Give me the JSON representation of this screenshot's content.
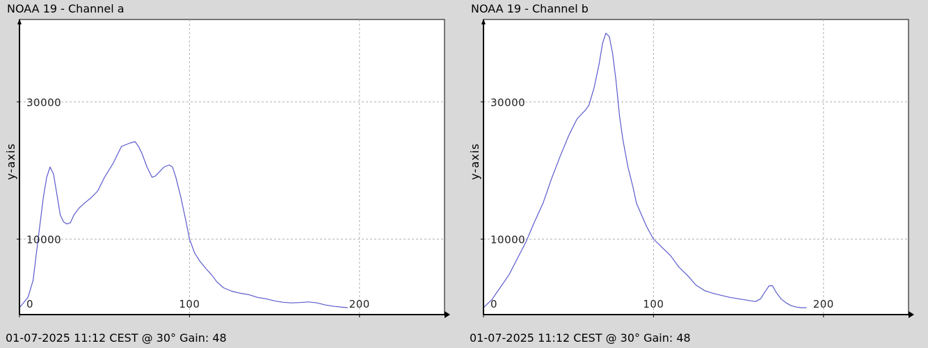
{
  "colors": {
    "background": "#d9d9d9",
    "plot_bg": "#ffffff",
    "line": "#5a5acd",
    "grid": "#b0b0b0",
    "axis": "#000000"
  },
  "chart_data": [
    {
      "type": "line",
      "title": "NOAA 19 - Channel a",
      "footer": "01-07-2025 11:12 CEST @ 30° Gain: 48",
      "ylabel": "y-axis",
      "xlabel": "",
      "xlim": [
        0,
        250
      ],
      "ylim": [
        -1000,
        42000
      ],
      "x_ticks": [
        0,
        100,
        200
      ],
      "y_ticks": [
        10000,
        30000
      ],
      "grid": true,
      "series": [
        {
          "x": [
            0,
            5,
            8,
            10,
            12,
            14,
            16,
            18,
            20,
            22,
            24,
            26,
            28,
            30,
            32,
            35,
            38,
            42,
            46,
            50,
            55,
            60,
            65,
            68,
            70,
            72,
            75,
            78,
            80,
            85,
            88,
            90,
            92,
            95,
            98,
            100,
            103,
            106,
            108,
            110,
            113,
            116,
            120,
            125,
            130,
            135,
            140,
            145,
            150,
            155,
            160,
            165,
            170,
            175,
            180,
            185,
            190,
            193
          ],
          "y": [
            0,
            1500,
            4000,
            8000,
            12000,
            16000,
            19000,
            20500,
            19500,
            16500,
            13500,
            12500,
            12200,
            12400,
            13500,
            14500,
            15200,
            16000,
            17000,
            19000,
            21000,
            23500,
            24000,
            24200,
            23500,
            22500,
            20500,
            19000,
            19200,
            20500,
            20800,
            20500,
            19000,
            16000,
            12500,
            10000,
            8000,
            6800,
            6200,
            5600,
            4800,
            3800,
            2900,
            2400,
            2100,
            1900,
            1500,
            1300,
            1000,
            800,
            700,
            750,
            850,
            700,
            400,
            200,
            80,
            0
          ]
        }
      ]
    },
    {
      "type": "line",
      "title": "NOAA 19 - Channel b",
      "footer": "01-07-2025 11:12 CEST @ 30° Gain: 48",
      "ylabel": "y-axis",
      "xlabel": "",
      "xlim": [
        0,
        250
      ],
      "ylim": [
        -1000,
        42000
      ],
      "x_ticks": [
        0,
        100,
        200
      ],
      "y_ticks": [
        10000,
        30000
      ],
      "grid": true,
      "series": [
        {
          "x": [
            0,
            5,
            10,
            15,
            20,
            25,
            30,
            35,
            40,
            45,
            50,
            53,
            55,
            58,
            60,
            62,
            65,
            68,
            70,
            72,
            74,
            76,
            78,
            80,
            82,
            85,
            88,
            90,
            93,
            96,
            100,
            105,
            110,
            115,
            120,
            125,
            130,
            135,
            140,
            145,
            150,
            155,
            160,
            163,
            165,
            168,
            170,
            172,
            175,
            178,
            181,
            184,
            187,
            190
          ],
          "y": [
            0,
            1200,
            3000,
            4800,
            7200,
            9600,
            12500,
            15200,
            18800,
            22000,
            25000,
            26500,
            27500,
            28300,
            28800,
            29500,
            32000,
            35500,
            38500,
            40000,
            39500,
            37000,
            33000,
            28000,
            24500,
            20500,
            17500,
            15200,
            13500,
            11800,
            10000,
            8800,
            7600,
            5900,
            4700,
            3300,
            2500,
            2100,
            1800,
            1500,
            1300,
            1100,
            900,
            1300,
            2100,
            3200,
            3200,
            2300,
            1300,
            700,
            300,
            100,
            0,
            0
          ]
        }
      ]
    }
  ]
}
